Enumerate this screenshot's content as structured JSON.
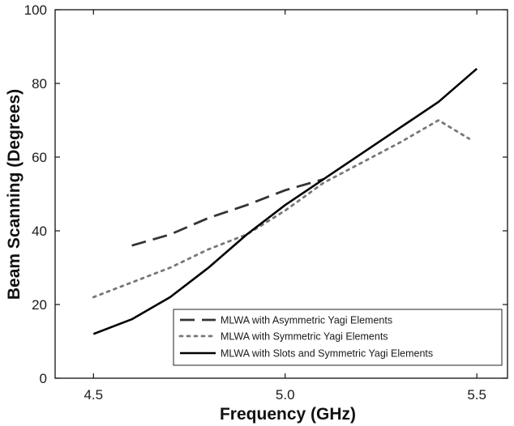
{
  "chart_data": {
    "type": "line",
    "title": "",
    "xlabel": "Frequency (GHz)",
    "ylabel": "Beam Scanning (Degrees)",
    "xlim": [
      4.4,
      5.58
    ],
    "ylim": [
      0,
      100
    ],
    "xticks": [
      "4.5",
      "5.0",
      "5.5"
    ],
    "xtick_values": [
      4.5,
      5.0,
      5.5
    ],
    "yticks": [
      "0",
      "20",
      "40",
      "60",
      "80",
      "100"
    ],
    "ytick_values": [
      0,
      20,
      40,
      60,
      80,
      100
    ],
    "grid": false,
    "legend_position": "bottom-right",
    "series": [
      {
        "name": "MLWA with Asymmetric Yagi Elements",
        "style": "dashed",
        "color": "#333333",
        "x": [
          4.6,
          4.7,
          4.8,
          4.9,
          5.0,
          5.1
        ],
        "y": [
          36,
          39,
          43.5,
          47,
          51,
          54
        ]
      },
      {
        "name": "MLWA with Symmetric Yagi Elements",
        "style": "dotted",
        "color": "#777777",
        "x": [
          4.5,
          4.6,
          4.7,
          4.8,
          4.9,
          5.0,
          5.1,
          5.2,
          5.3,
          5.4,
          5.48
        ],
        "y": [
          22,
          26,
          30,
          35,
          39,
          45.5,
          53,
          58.5,
          64,
          70,
          65
        ]
      },
      {
        "name": "MLWA with Slots and Symmetric Yagi Elements",
        "style": "solid",
        "color": "#000000",
        "x": [
          4.5,
          4.6,
          4.7,
          4.8,
          4.9,
          5.0,
          5.1,
          5.2,
          5.3,
          5.4,
          5.5
        ],
        "y": [
          12,
          16,
          22,
          30,
          39,
          47,
          54,
          61,
          68,
          75,
          84
        ]
      }
    ]
  }
}
